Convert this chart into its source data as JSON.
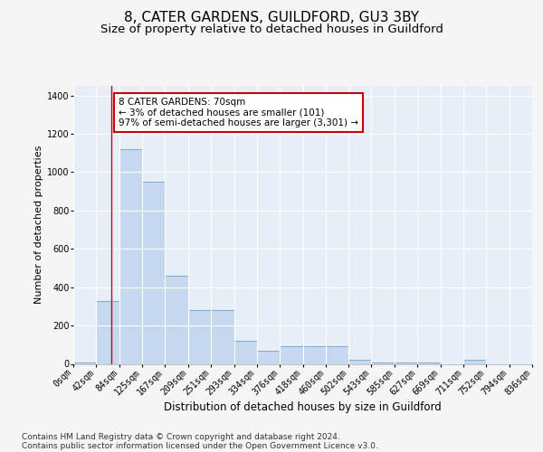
{
  "title": "8, CATER GARDENS, GUILDFORD, GU3 3BY",
  "subtitle": "Size of property relative to detached houses in Guildford",
  "xlabel": "Distribution of detached houses by size in Guildford",
  "ylabel": "Number of detached properties",
  "bin_edges": [
    0,
    42,
    84,
    125,
    167,
    209,
    251,
    293,
    334,
    376,
    418,
    460,
    502,
    543,
    585,
    627,
    669,
    711,
    752,
    794,
    836
  ],
  "bar_heights": [
    5,
    330,
    1120,
    950,
    460,
    280,
    280,
    120,
    70,
    90,
    90,
    90,
    20,
    5,
    5,
    5,
    0,
    20,
    0,
    0
  ],
  "bar_color": "#c5d8f0",
  "bar_edge_color": "#7aadd4",
  "vline_x": 70,
  "vline_color": "#cc0000",
  "annotation_text": "8 CATER GARDENS: 70sqm\n← 3% of detached houses are smaller (101)\n97% of semi-detached houses are larger (3,301) →",
  "annotation_box_facecolor": "#ffffff",
  "annotation_box_edgecolor": "#cc0000",
  "ylim": [
    0,
    1450
  ],
  "yticks": [
    0,
    200,
    400,
    600,
    800,
    1000,
    1200,
    1400
  ],
  "footer_line1": "Contains HM Land Registry data © Crown copyright and database right 2024.",
  "footer_line2": "Contains public sector information licensed under the Open Government Licence v3.0.",
  "fig_bg_color": "#f5f5f5",
  "axes_bg_color": "#e8eef8",
  "grid_color": "#ffffff",
  "title_fontsize": 11,
  "subtitle_fontsize": 9.5,
  "tick_fontsize": 7,
  "ylabel_fontsize": 8,
  "xlabel_fontsize": 8.5,
  "annot_fontsize": 7.5,
  "footer_fontsize": 6.5
}
